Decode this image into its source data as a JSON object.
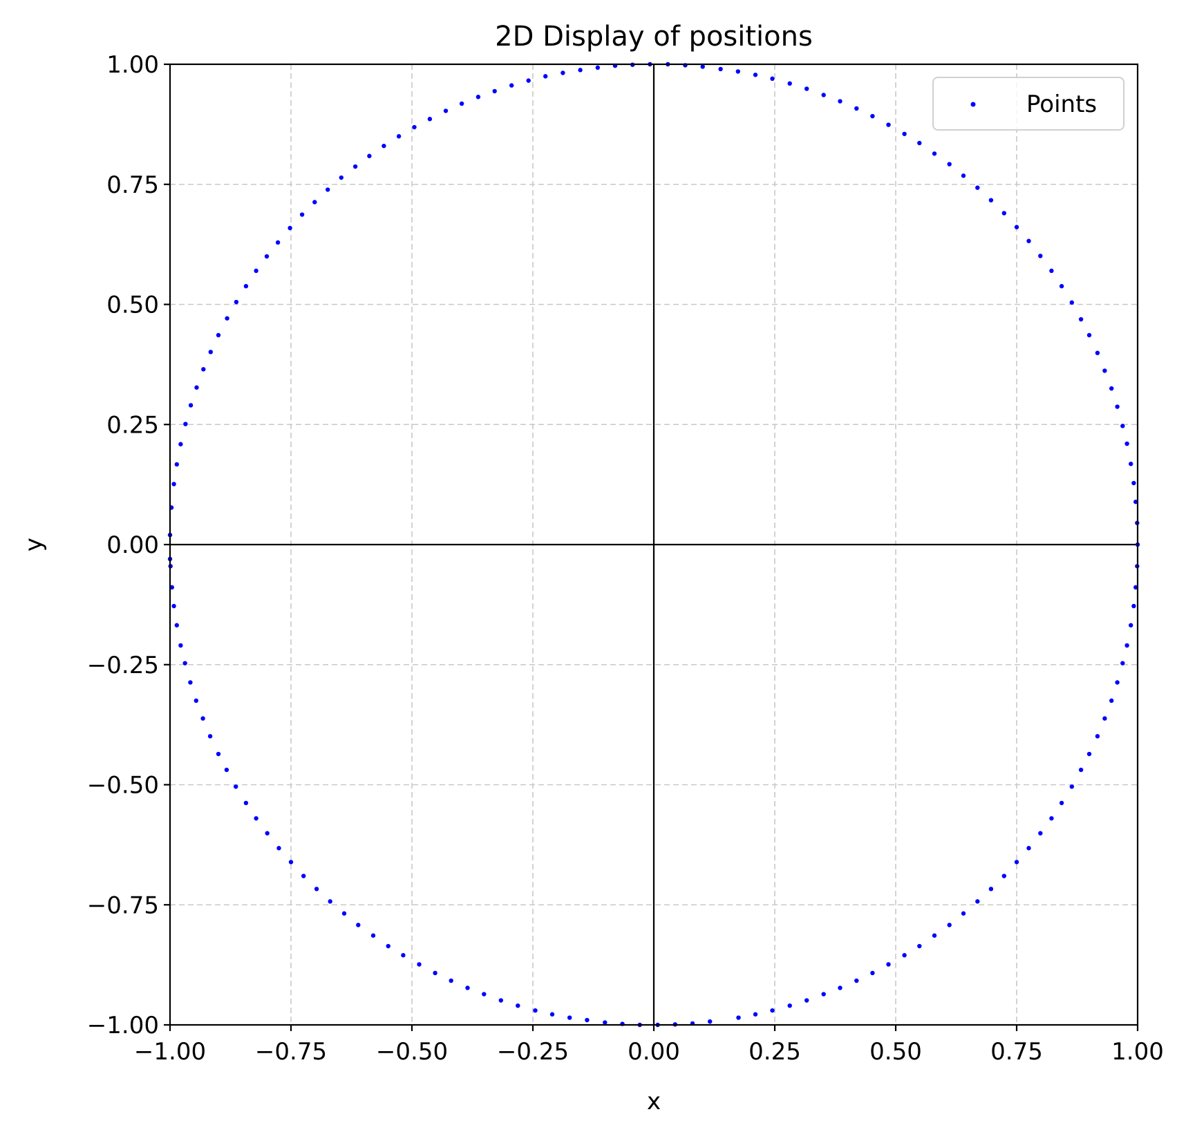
{
  "chart_data": {
    "type": "scatter",
    "title": "2D Display of positions",
    "xlabel": "x",
    "ylabel": "y",
    "xlim": [
      -1.0,
      1.0
    ],
    "ylim": [
      -1.0,
      1.0
    ],
    "xticks": [
      -1.0,
      -0.75,
      -0.5,
      -0.25,
      0.0,
      0.25,
      0.5,
      0.75,
      1.0
    ],
    "yticks": [
      -1.0,
      -0.75,
      -0.5,
      -0.25,
      0.0,
      0.25,
      0.5,
      0.75,
      1.0
    ],
    "xtick_labels": [
      "−1.00",
      "−0.75",
      "−0.50",
      "−0.25",
      "0.00",
      "0.25",
      "0.50",
      "0.75",
      "1.00"
    ],
    "ytick_labels": [
      "−1.00",
      "−0.75",
      "−0.50",
      "−0.25",
      "0.00",
      "0.25",
      "0.50",
      "0.75",
      "1.00"
    ],
    "grid": true,
    "grid_style": "dashed",
    "zero_lines": true,
    "legend": {
      "position": "top-right",
      "entries": [
        "Points"
      ]
    },
    "series": [
      {
        "name": "Points",
        "color": "#0000ff",
        "description_shape": "unit-circle",
        "x": [
          1.0,
          0.999,
          0.996,
          0.992,
          0.986,
          0.978,
          0.969,
          0.958,
          0.946,
          0.932,
          0.917,
          0.9,
          0.883,
          0.864,
          0.843,
          0.822,
          0.799,
          0.775,
          0.75,
          0.724,
          0.697,
          0.669,
          0.64,
          0.611,
          0.58,
          0.549,
          0.518,
          0.485,
          0.452,
          0.419,
          0.385,
          0.351,
          0.316,
          0.281,
          0.245,
          0.21,
          0.174,
          0.138,
          0.101,
          0.065,
          0.029,
          -0.008,
          -0.044,
          -0.08,
          -0.116,
          -0.152,
          -0.188,
          -0.224,
          -0.259,
          -0.294,
          -0.329,
          -0.363,
          -0.397,
          -0.43,
          -0.463,
          -0.495,
          -0.527,
          -0.558,
          -0.588,
          -0.617,
          -0.646,
          -0.674,
          -0.701,
          -0.727,
          -0.752,
          -0.777,
          -0.8,
          -0.822,
          -0.843,
          -0.863,
          -0.882,
          -0.9,
          -0.916,
          -0.931,
          -0.945,
          -0.957,
          -0.968,
          -0.978,
          -0.986,
          -0.992,
          -0.997,
          -1.0,
          -1.0,
          -0.999,
          -0.996,
          -0.992,
          -0.986,
          -0.978,
          -0.969,
          -0.958,
          -0.946,
          -0.932,
          -0.917,
          -0.9,
          -0.883,
          -0.864,
          -0.843,
          -0.822,
          -0.799,
          -0.775,
          -0.75,
          -0.724,
          -0.697,
          -0.669,
          -0.64,
          -0.611,
          -0.58,
          -0.549,
          -0.518,
          -0.485,
          -0.452,
          -0.419,
          -0.385,
          -0.351,
          -0.316,
          -0.281,
          -0.245,
          -0.21,
          -0.174,
          -0.138,
          -0.101,
          -0.065,
          -0.029,
          0.008,
          0.044,
          0.08,
          0.116,
          0.175,
          0.21,
          0.245,
          0.281,
          0.316,
          0.351,
          0.385,
          0.419,
          0.452,
          0.485,
          0.518,
          0.549,
          0.58,
          0.611,
          0.64,
          0.669,
          0.697,
          0.724,
          0.75,
          0.775,
          0.799,
          0.822,
          0.843,
          0.864,
          0.883,
          0.9,
          0.917,
          0.932,
          0.946,
          0.958,
          0.969,
          0.978,
          0.986,
          0.992,
          0.996,
          0.999
        ],
        "y": [
          0.0,
          0.045,
          0.089,
          0.128,
          0.168,
          0.21,
          0.247,
          0.287,
          0.325,
          0.362,
          0.399,
          0.436,
          0.469,
          0.504,
          0.538,
          0.57,
          0.601,
          0.632,
          0.661,
          0.69,
          0.717,
          0.743,
          0.768,
          0.792,
          0.814,
          0.836,
          0.855,
          0.874,
          0.892,
          0.908,
          0.923,
          0.936,
          0.949,
          0.96,
          0.97,
          0.978,
          0.985,
          0.99,
          0.995,
          0.998,
          1.0,
          1.0,
          0.999,
          0.997,
          0.993,
          0.988,
          0.982,
          0.975,
          0.966,
          0.956,
          0.944,
          0.932,
          0.918,
          0.903,
          0.886,
          0.869,
          0.85,
          0.83,
          0.809,
          0.787,
          0.764,
          0.739,
          0.713,
          0.687,
          0.659,
          0.629,
          0.6,
          0.57,
          0.538,
          0.505,
          0.471,
          0.436,
          0.401,
          0.365,
          0.327,
          0.29,
          0.251,
          0.209,
          0.167,
          0.126,
          0.077,
          0.02,
          -0.03,
          -0.045,
          -0.089,
          -0.128,
          -0.168,
          -0.21,
          -0.247,
          -0.287,
          -0.325,
          -0.362,
          -0.399,
          -0.436,
          -0.469,
          -0.504,
          -0.538,
          -0.57,
          -0.601,
          -0.632,
          -0.661,
          -0.69,
          -0.717,
          -0.743,
          -0.768,
          -0.792,
          -0.814,
          -0.836,
          -0.855,
          -0.874,
          -0.892,
          -0.908,
          -0.923,
          -0.936,
          -0.949,
          -0.96,
          -0.97,
          -0.978,
          -0.985,
          -0.99,
          -0.995,
          -0.998,
          -1.0,
          -1.0,
          -0.999,
          -0.997,
          -0.993,
          -0.985,
          -0.978,
          -0.97,
          -0.96,
          -0.949,
          -0.936,
          -0.923,
          -0.908,
          -0.892,
          -0.874,
          -0.855,
          -0.836,
          -0.814,
          -0.792,
          -0.768,
          -0.743,
          -0.717,
          -0.69,
          -0.661,
          -0.632,
          -0.601,
          -0.57,
          -0.538,
          -0.504,
          -0.469,
          -0.436,
          -0.399,
          -0.362,
          -0.325,
          -0.287,
          -0.247,
          -0.21,
          -0.168,
          -0.128,
          -0.089,
          -0.045
        ]
      }
    ]
  }
}
